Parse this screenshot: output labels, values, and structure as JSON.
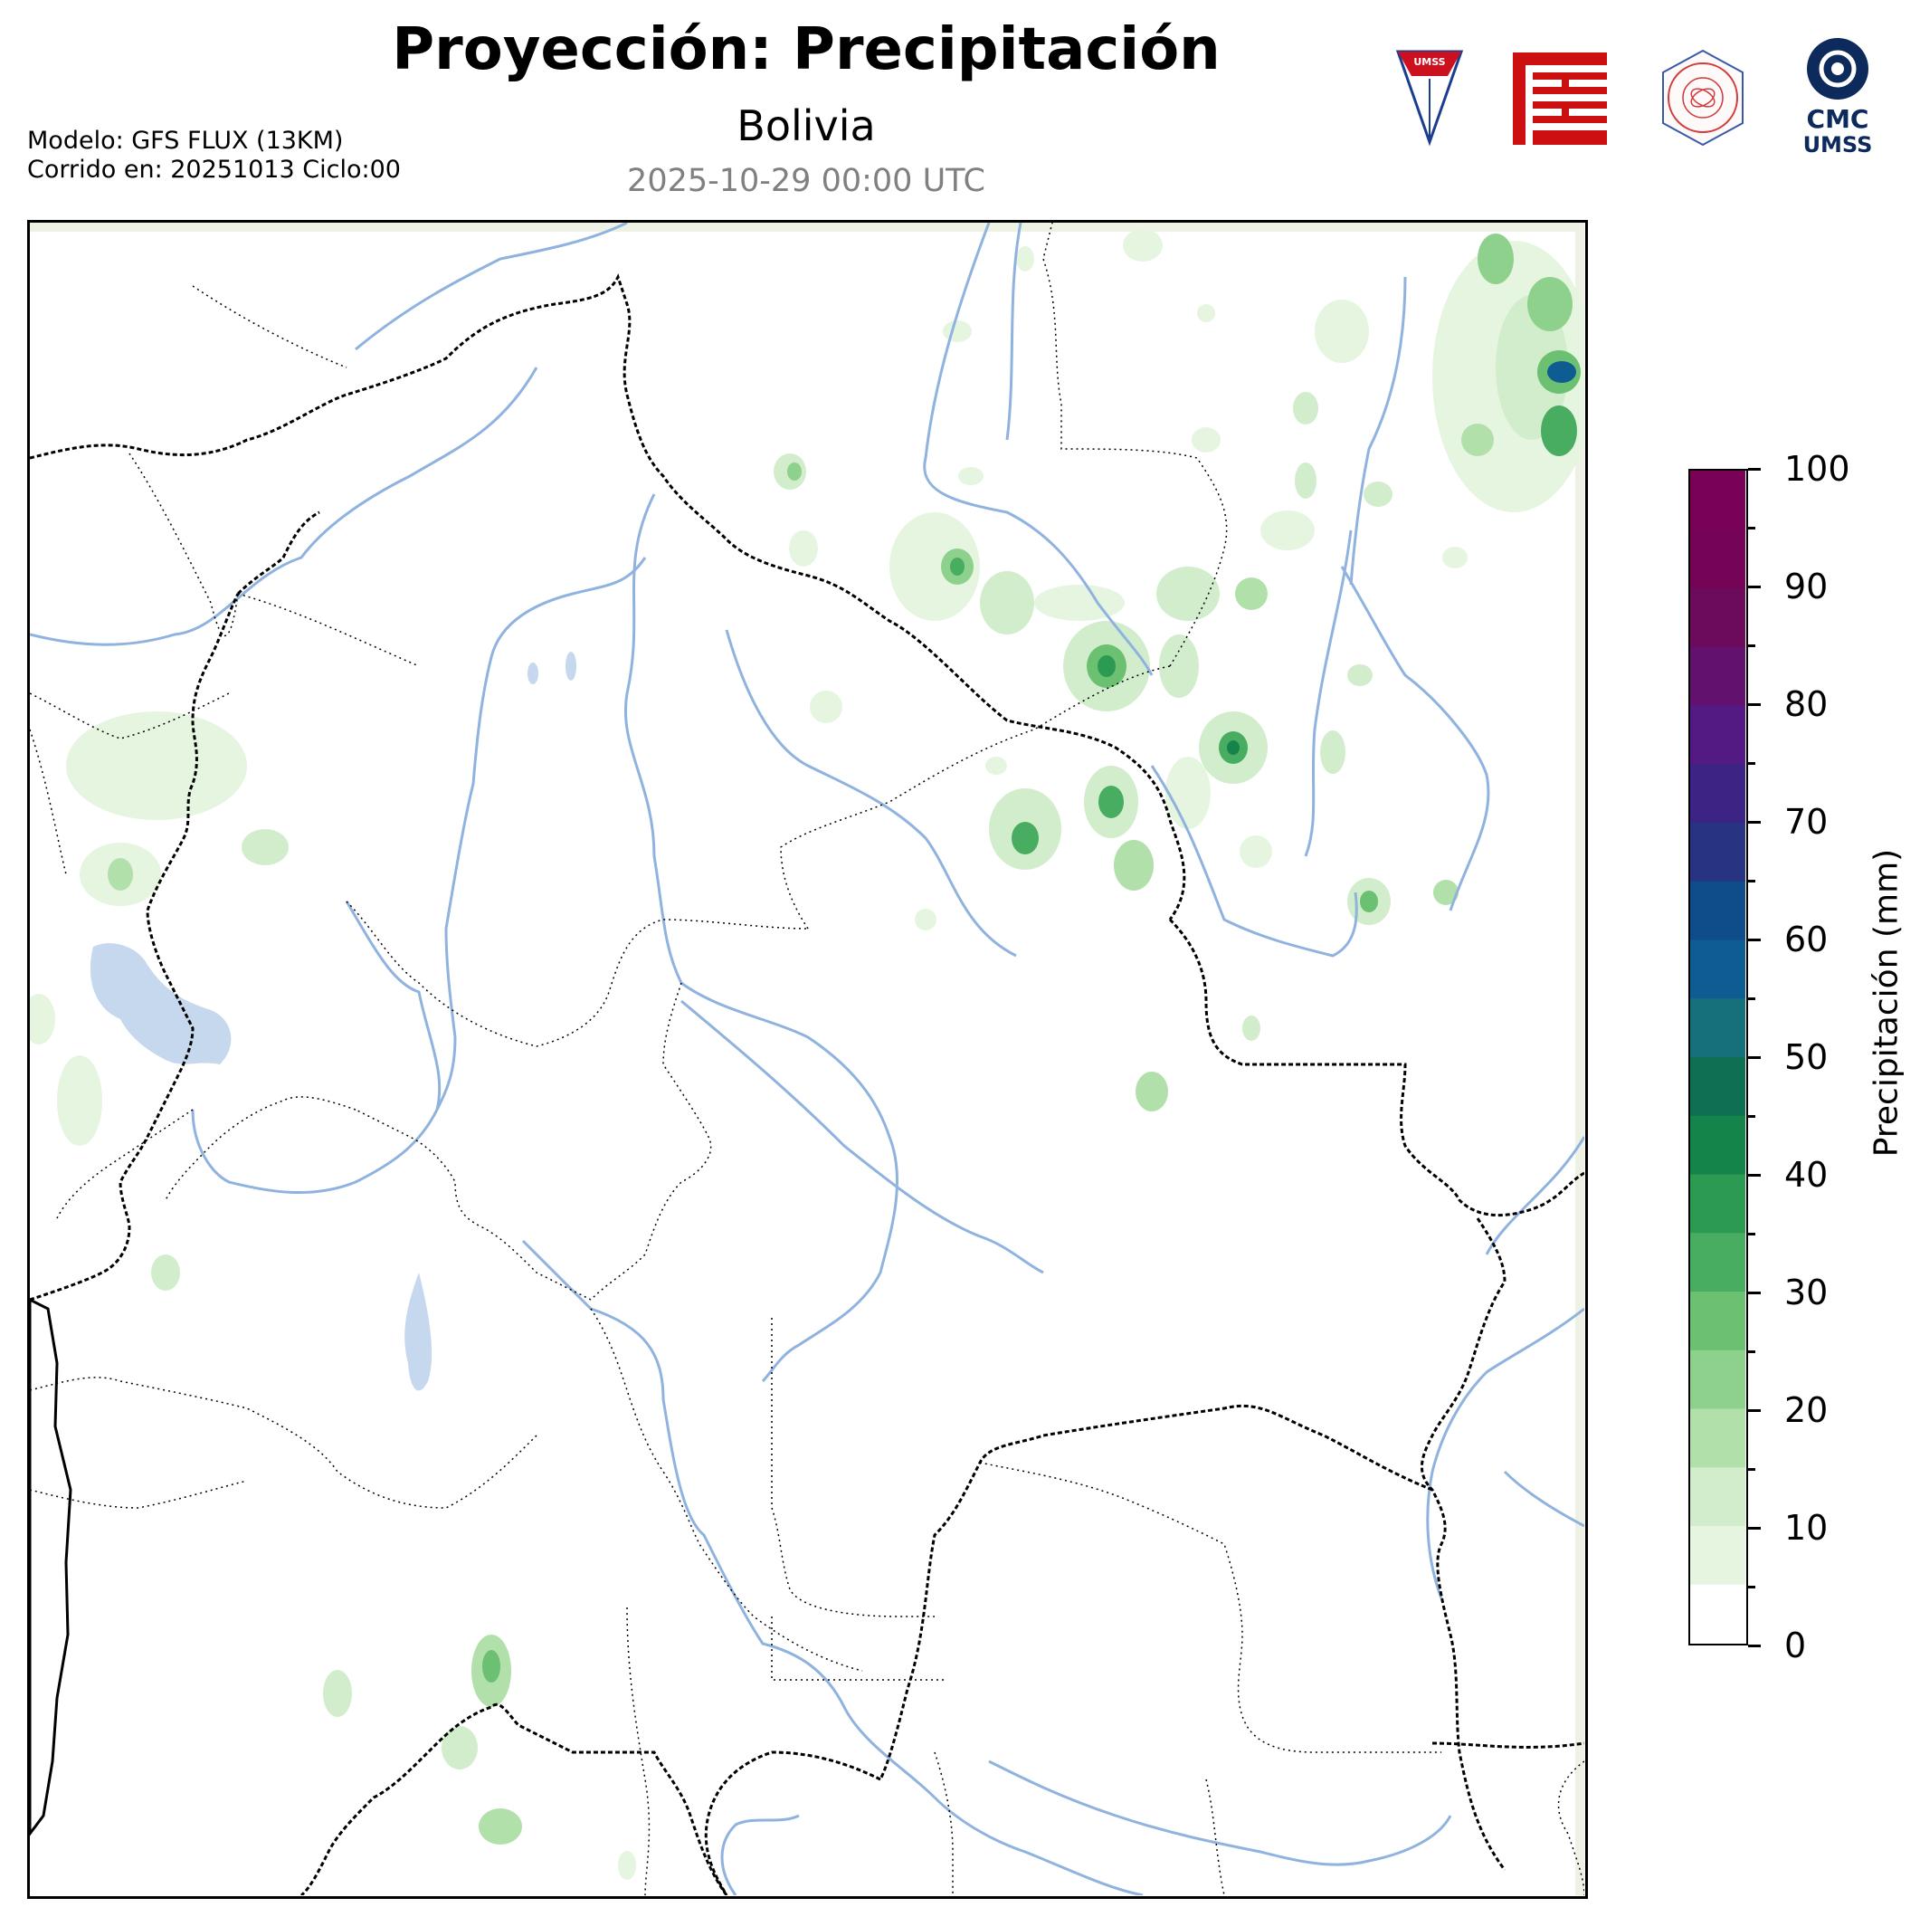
{
  "header": {
    "title": "Proyección: Precipitación",
    "region": "Bolivia",
    "valid_time": "2025-10-29 00:00 UTC"
  },
  "run_info": {
    "model": "Modelo: GFS FLUX (13KM)",
    "run": "Corrido en: 20251013 Ciclo:00"
  },
  "logos": {
    "umss_shield": "UMSS",
    "cmc_top": "CMC",
    "cmc_bottom": "UMSS",
    "physics_seal": "DEPARTAMENTO DE FÍSICA"
  },
  "colorbar": {
    "label": "Precipitación (mm)",
    "tick_labels": [
      "0",
      "10",
      "20",
      "30",
      "40",
      "50",
      "60",
      "70",
      "80",
      "90",
      "100"
    ],
    "min": 0,
    "max": 100,
    "step": 5,
    "colors": [
      "#ffffff",
      "#e5f5e0",
      "#d1edcb",
      "#b2e0ab",
      "#8ed18c",
      "#6cc072",
      "#48ad60",
      "#2c9a52",
      "#15844a",
      "#0e6f53",
      "#16707b",
      "#0f5c93",
      "#0f4c8a",
      "#283381",
      "#3c2485",
      "#521a82",
      "#62116e",
      "#6c0a5c",
      "#750456",
      "#7a0256"
    ]
  },
  "colors": {
    "rivers": "#8fb3de",
    "lakes": "#c6d8ee",
    "borders": "#000000",
    "ocean_edge": "#eef2e4"
  },
  "icons": [
    "umss-shield-icon",
    "fcyt-logo-icon",
    "physics-seal-icon",
    "cmc-logo-icon"
  ]
}
